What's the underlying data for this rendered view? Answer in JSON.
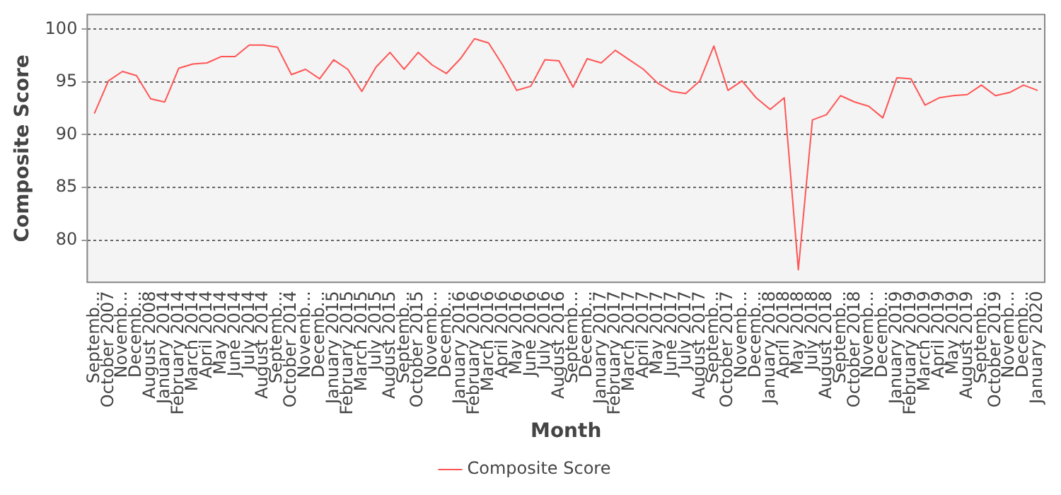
{
  "chart_data": {
    "type": "line",
    "xlabel": "Month",
    "ylabel": "Composite Score",
    "categories": [
      "Septemb...",
      "October 2007",
      "Novemb...",
      "Decemb...",
      "August 2008",
      "January 2014",
      "February 2014",
      "March 2014",
      "April 2014",
      "May 2014",
      "June 2014",
      "July 2014",
      "August 2014",
      "Septemb...",
      "October 2014",
      "Novemb...",
      "Decemb...",
      "January 2015",
      "February 2015",
      "March 2015",
      "July 2015",
      "August 2015",
      "Septemb...",
      "October 2015",
      "Novemb...",
      "Decemb...",
      "January 2016",
      "February 2016",
      "March 2016",
      "April 2016",
      "May 2016",
      "June 2016",
      "July 2016",
      "August 2016",
      "Septemb...",
      "Decemb...",
      "January 2017",
      "February 2017",
      "March 2017",
      "April 2017",
      "May 2017",
      "June 2017",
      "July 2017",
      "August 2017",
      "Septemb...",
      "October 2017",
      "Novemb...",
      "Decemb...",
      "January 2018",
      "April 2018",
      "May 2018",
      "July 2018",
      "August 2018",
      "Septemb...",
      "October 2018",
      "Novemb...",
      "Decemb...",
      "January 2019",
      "February 2019",
      "March 2019",
      "April 2019",
      "May 2019",
      "August 2019",
      "Septemb...",
      "October 2019",
      "Novemb...",
      "Decemb...",
      "January 2020"
    ],
    "series": [
      {
        "name": "Composite Score",
        "color": "#ff5555",
        "values": [
          92.0,
          95.1,
          96.0,
          95.6,
          93.4,
          93.1,
          96.3,
          96.7,
          96.8,
          97.4,
          97.4,
          98.5,
          98.5,
          98.3,
          95.7,
          96.2,
          95.3,
          97.1,
          96.2,
          94.1,
          96.4,
          97.8,
          96.2,
          97.8,
          96.6,
          95.8,
          97.2,
          99.1,
          98.7,
          96.6,
          94.2,
          94.6,
          97.1,
          97.0,
          94.5,
          97.2,
          96.8,
          98.0,
          97.1,
          96.2,
          94.9,
          94.1,
          93.9,
          95.1,
          98.4,
          94.2,
          95.1,
          93.5,
          92.4,
          93.5,
          77.2,
          91.4,
          91.9,
          93.7,
          93.1,
          92.7,
          91.6,
          95.4,
          95.3,
          92.8,
          93.5,
          93.7,
          93.8,
          94.7,
          93.7,
          94.0,
          94.7,
          94.2
        ]
      }
    ],
    "ylim": [
      76,
      101.4
    ],
    "yticks": [
      80,
      85,
      90,
      95,
      100
    ],
    "grid": "y",
    "legend": "bottom",
    "marker": "none",
    "line_style": "solid"
  }
}
